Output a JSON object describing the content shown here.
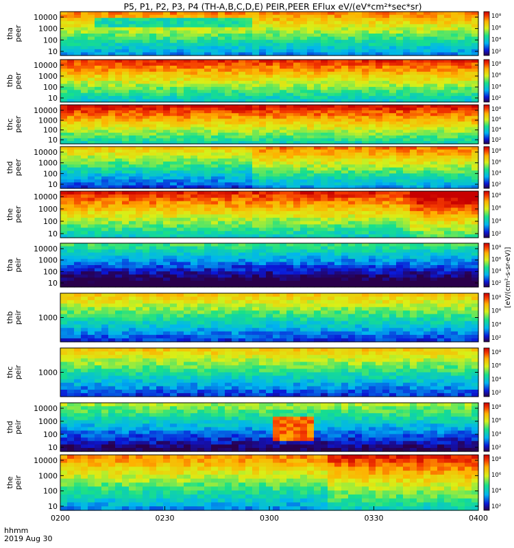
{
  "title": "P5, P1, P2, P3, P4 (TH-A,B,C,D,E) PEIR,PEER EFlux eV/(eV*cm²*sec*sr)",
  "colorbar_label": "[eV/(cm²-s-sr-eV)]",
  "footer": {
    "time_label": "hhmm",
    "date_label": "2019 Aug 30"
  },
  "chart_data": {
    "type": "heatmap",
    "x_unit": "UT hhmm",
    "x_ticks": [
      "0200",
      "0230",
      "0300",
      "0330",
      "0400"
    ],
    "x_range": [
      "02:00",
      "04:00"
    ],
    "y_scale": "log",
    "y_unit": "eV",
    "colorbar_scale": "log",
    "colorbar_ticks": [
      "10²",
      "10⁴",
      "10⁶",
      "10⁸"
    ],
    "panels": [
      {
        "id": "tha-peer",
        "label": [
          "tha",
          "peer"
        ],
        "y_ticks": [
          "10000",
          "1000",
          "100",
          "10"
        ],
        "base": 0.7,
        "mid_band": [
          0.15,
          0.38
        ],
        "mid_start": 0.07,
        "mid_end": 0.45,
        "mid_value": 0.42
      },
      {
        "id": "thb-peer",
        "label": [
          "thb",
          "peer"
        ],
        "y_ticks": [
          "10000",
          "1000",
          "100",
          "10"
        ],
        "base": 0.8
      },
      {
        "id": "thc-peer",
        "label": [
          "thc",
          "peer"
        ],
        "y_ticks": [
          "10000",
          "1000",
          "100",
          "10"
        ],
        "base": 0.85
      },
      {
        "id": "thd-peer",
        "label": [
          "thd",
          "peer"
        ],
        "y_ticks": [
          "10000",
          "1000",
          "100",
          "10"
        ],
        "base": 0.6,
        "transition_at": 0.45
      },
      {
        "id": "the-peer",
        "label": [
          "the",
          "peer"
        ],
        "y_ticks": [
          "10000",
          "1000",
          "100",
          "10"
        ],
        "base": 0.82,
        "transition_at": 0.82
      },
      {
        "id": "tha-peir",
        "label": [
          "tha",
          "peir"
        ],
        "y_ticks": [
          "10000",
          "1000",
          "100",
          "10"
        ],
        "base": 0.35
      },
      {
        "id": "thb-peir",
        "label": [
          "thb",
          "peir"
        ],
        "y_ticks": [
          "1000"
        ],
        "base": 0.6
      },
      {
        "id": "thc-peir",
        "label": [
          "thc",
          "peir"
        ],
        "y_ticks": [
          "1000"
        ],
        "base": 0.6
      },
      {
        "id": "thd-peir",
        "label": [
          "thd",
          "peir"
        ],
        "y_ticks": [
          "10000",
          "1000",
          "100",
          "10"
        ],
        "base": 0.45,
        "burst_at": 0.55
      },
      {
        "id": "the-peir",
        "label": [
          "the",
          "peir"
        ],
        "y_ticks": [
          "10000",
          "1000",
          "100",
          "10"
        ],
        "base": 0.7,
        "transition_at": 0.63
      }
    ]
  }
}
